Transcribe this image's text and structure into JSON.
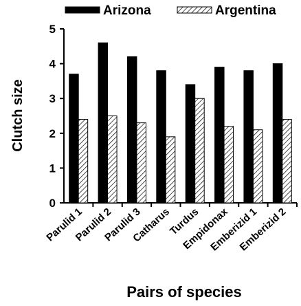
{
  "chart_data": {
    "type": "bar",
    "categories": [
      "Parulid 1",
      "Parulid 2",
      "Parulid 3",
      "Catharus",
      "Turdus",
      "Empidonax",
      "Emberizid 1",
      "Emberizid 2"
    ],
    "series": [
      {
        "name": "Arizona",
        "color": "#000000",
        "fill": "solid",
        "values": [
          3.7,
          4.6,
          4.2,
          3.8,
          3.4,
          3.9,
          3.8,
          4.0
        ]
      },
      {
        "name": "Argentina",
        "color": "#000000",
        "fill": "hatch",
        "values": [
          2.4,
          2.5,
          2.3,
          1.9,
          3.0,
          2.2,
          2.1,
          2.4
        ]
      }
    ],
    "ylabel": "Clutch size",
    "xlabel": "Pairs of species",
    "ylim": [
      0,
      5
    ],
    "yticks": [
      0,
      1,
      2,
      3,
      4,
      5
    ],
    "grid": false,
    "legend": "top"
  }
}
